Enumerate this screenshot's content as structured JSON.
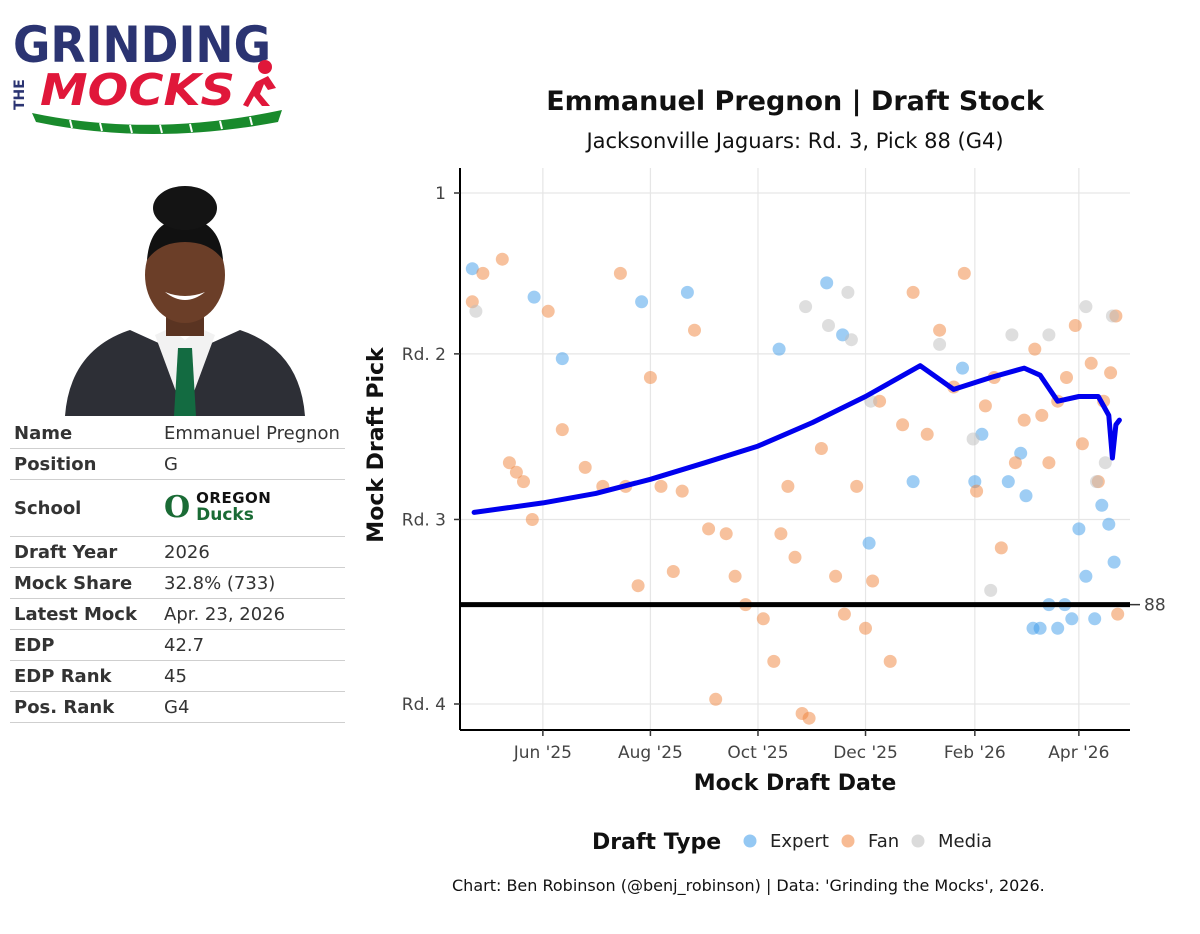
{
  "logo": {
    "line1": "GRINDING",
    "line2": "THE",
    "line3": "MOCKS"
  },
  "player_card": {
    "rows": [
      {
        "label": "Name",
        "value": "Emmanuel Pregnon"
      },
      {
        "label": "Position",
        "value": "G"
      },
      {
        "label": "School",
        "value": ""
      },
      {
        "label": "Draft Year",
        "value": "2026"
      },
      {
        "label": "Mock Share",
        "value": "32.8% (733)"
      },
      {
        "label": "Latest Mock",
        "value": "Apr. 23, 2026"
      },
      {
        "label": "EDP",
        "value": "42.7"
      },
      {
        "label": "EDP Rank",
        "value": "45"
      },
      {
        "label": "Pos. Rank",
        "value": "G4"
      }
    ],
    "school_logo": {
      "letter": "O",
      "name1": "OREGON",
      "name2": "Ducks"
    }
  },
  "colors": {
    "expert": "#3d9be9",
    "fan": "#f0843c",
    "media": "#bdbdbd",
    "trend": "#0000ee",
    "oregon_green": "#1a6b35"
  },
  "credit": "Chart: Ben Robinson (@benj_robinson) | Data: 'Grinding the Mocks', 2026.",
  "chart_data": {
    "type": "scatter",
    "title": "Emmanuel Pregnon | Draft Stock",
    "subtitle": "Jacksonville Jaguars: Rd. 3, Pick 88 (G4)",
    "xlabel": "Mock Draft Date",
    "ylabel": "Mock Draft Pick",
    "x_range": [
      "2025-04-15",
      "2026-04-30"
    ],
    "y_range": [
      1,
      109
    ],
    "y_reversed": true,
    "x_ticks": [
      {
        "date": "2025-06-01",
        "label": "Jun '25"
      },
      {
        "date": "2025-08-01",
        "label": "Aug '25"
      },
      {
        "date": "2025-10-01",
        "label": "Oct '25"
      },
      {
        "date": "2025-12-01",
        "label": "Dec '25"
      },
      {
        "date": "2026-02-01",
        "label": "Feb '26"
      },
      {
        "date": "2026-04-01",
        "label": "Apr '26"
      }
    ],
    "y_ticks": [
      {
        "value": 1,
        "label": "1"
      },
      {
        "value": 35,
        "label": "Rd. 2"
      },
      {
        "value": 70,
        "label": "Rd. 3"
      },
      {
        "value": 109,
        "label": "Rd. 4"
      }
    ],
    "reference_line": {
      "value": 88,
      "label": "88"
    },
    "legend": {
      "title": "Draft Type",
      "position": "bottom",
      "entries": [
        "Expert",
        "Fan",
        "Media"
      ]
    },
    "grid": true,
    "trend": [
      [
        "2025-04-23",
        68.5
      ],
      [
        "2025-06-01",
        66.5
      ],
      [
        "2025-07-01",
        64.5
      ],
      [
        "2025-08-01",
        61.5
      ],
      [
        "2025-09-01",
        58.0
      ],
      [
        "2025-10-01",
        54.5
      ],
      [
        "2025-11-01",
        49.5
      ],
      [
        "2025-12-01",
        44.0
      ],
      [
        "2026-01-01",
        37.5
      ],
      [
        "2026-01-20",
        42.5
      ],
      [
        "2026-02-10",
        40.0
      ],
      [
        "2026-03-01",
        38.0
      ],
      [
        "2026-03-10",
        39.5
      ],
      [
        "2026-03-20",
        45.0
      ],
      [
        "2026-04-01",
        44.0
      ],
      [
        "2026-04-12",
        44.0
      ],
      [
        "2026-04-18",
        48.0
      ],
      [
        "2026-04-20",
        57.0
      ],
      [
        "2026-04-22",
        50.0
      ],
      [
        "2026-04-24",
        49.0
      ]
    ],
    "series": [
      {
        "name": "Expert",
        "points": [
          [
            "2025-04-22",
            17
          ],
          [
            "2025-05-27",
            23
          ],
          [
            "2025-06-12",
            36
          ],
          [
            "2025-07-27",
            24
          ],
          [
            "2025-08-22",
            22
          ],
          [
            "2025-10-13",
            34
          ],
          [
            "2025-11-09",
            20
          ],
          [
            "2025-11-18",
            31
          ],
          [
            "2025-12-03",
            75
          ],
          [
            "2025-12-28",
            62
          ],
          [
            "2026-01-25",
            38
          ],
          [
            "2026-02-01",
            62
          ],
          [
            "2026-02-05",
            52
          ],
          [
            "2026-02-20",
            62
          ],
          [
            "2026-02-27",
            56
          ],
          [
            "2026-03-02",
            65
          ],
          [
            "2026-03-06",
            93
          ],
          [
            "2026-03-10",
            93
          ],
          [
            "2026-03-15",
            88
          ],
          [
            "2026-03-20",
            93
          ],
          [
            "2026-03-24",
            88
          ],
          [
            "2026-03-28",
            91
          ],
          [
            "2026-04-01",
            72
          ],
          [
            "2026-04-05",
            82
          ],
          [
            "2026-04-10",
            91
          ],
          [
            "2026-04-14",
            67
          ],
          [
            "2026-04-18",
            71
          ],
          [
            "2026-04-21",
            79
          ]
        ]
      },
      {
        "name": "Fan",
        "points": [
          [
            "2025-04-22",
            24
          ],
          [
            "2025-04-28",
            18
          ],
          [
            "2025-05-09",
            15
          ],
          [
            "2025-05-13",
            58
          ],
          [
            "2025-05-17",
            60
          ],
          [
            "2025-05-21",
            62
          ],
          [
            "2025-05-26",
            70
          ],
          [
            "2025-06-04",
            26
          ],
          [
            "2025-06-12",
            51
          ],
          [
            "2025-06-25",
            59
          ],
          [
            "2025-07-05",
            63
          ],
          [
            "2025-07-15",
            18
          ],
          [
            "2025-07-18",
            63
          ],
          [
            "2025-07-25",
            84
          ],
          [
            "2025-08-01",
            40
          ],
          [
            "2025-08-07",
            63
          ],
          [
            "2025-08-14",
            81
          ],
          [
            "2025-08-19",
            64
          ],
          [
            "2025-08-26",
            30
          ],
          [
            "2025-09-03",
            72
          ],
          [
            "2025-09-07",
            108
          ],
          [
            "2025-09-13",
            73
          ],
          [
            "2025-09-18",
            82
          ],
          [
            "2025-09-24",
            88
          ],
          [
            "2025-10-04",
            91
          ],
          [
            "2025-10-10",
            100
          ],
          [
            "2025-10-14",
            73
          ],
          [
            "2025-10-18",
            63
          ],
          [
            "2025-10-22",
            78
          ],
          [
            "2025-10-26",
            111
          ],
          [
            "2025-10-30",
            112
          ],
          [
            "2025-11-06",
            55
          ],
          [
            "2025-11-14",
            82
          ],
          [
            "2025-11-19",
            90
          ],
          [
            "2025-11-26",
            63
          ],
          [
            "2025-12-01",
            93
          ],
          [
            "2025-12-05",
            83
          ],
          [
            "2025-12-09",
            45
          ],
          [
            "2025-12-15",
            100
          ],
          [
            "2025-12-22",
            50
          ],
          [
            "2025-12-28",
            22
          ],
          [
            "2026-01-05",
            52
          ],
          [
            "2026-01-12",
            30
          ],
          [
            "2026-01-20",
            42
          ],
          [
            "2026-01-26",
            18
          ],
          [
            "2026-02-02",
            64
          ],
          [
            "2026-02-07",
            46
          ],
          [
            "2026-02-12",
            40
          ],
          [
            "2026-02-16",
            76
          ],
          [
            "2026-02-24",
            58
          ],
          [
            "2026-03-01",
            49
          ],
          [
            "2026-03-07",
            34
          ],
          [
            "2026-03-11",
            48
          ],
          [
            "2026-03-15",
            58
          ],
          [
            "2026-03-20",
            45
          ],
          [
            "2026-03-25",
            40
          ],
          [
            "2026-03-30",
            29
          ],
          [
            "2026-04-03",
            54
          ],
          [
            "2026-04-08",
            37
          ],
          [
            "2026-04-12",
            62
          ],
          [
            "2026-04-15",
            45
          ],
          [
            "2026-04-19",
            39
          ],
          [
            "2026-04-22",
            27
          ],
          [
            "2026-04-23",
            90
          ]
        ]
      },
      {
        "name": "Media",
        "points": [
          [
            "2025-04-24",
            26
          ],
          [
            "2025-10-28",
            25
          ],
          [
            "2025-11-10",
            29
          ],
          [
            "2025-11-21",
            22
          ],
          [
            "2025-11-23",
            32
          ],
          [
            "2025-12-04",
            45
          ],
          [
            "2026-01-12",
            33
          ],
          [
            "2026-01-31",
            53
          ],
          [
            "2026-02-10",
            85
          ],
          [
            "2026-02-22",
            31
          ],
          [
            "2026-03-15",
            31
          ],
          [
            "2026-04-05",
            25
          ],
          [
            "2026-04-11",
            62
          ],
          [
            "2026-04-16",
            58
          ],
          [
            "2026-04-20",
            27
          ]
        ]
      }
    ]
  }
}
